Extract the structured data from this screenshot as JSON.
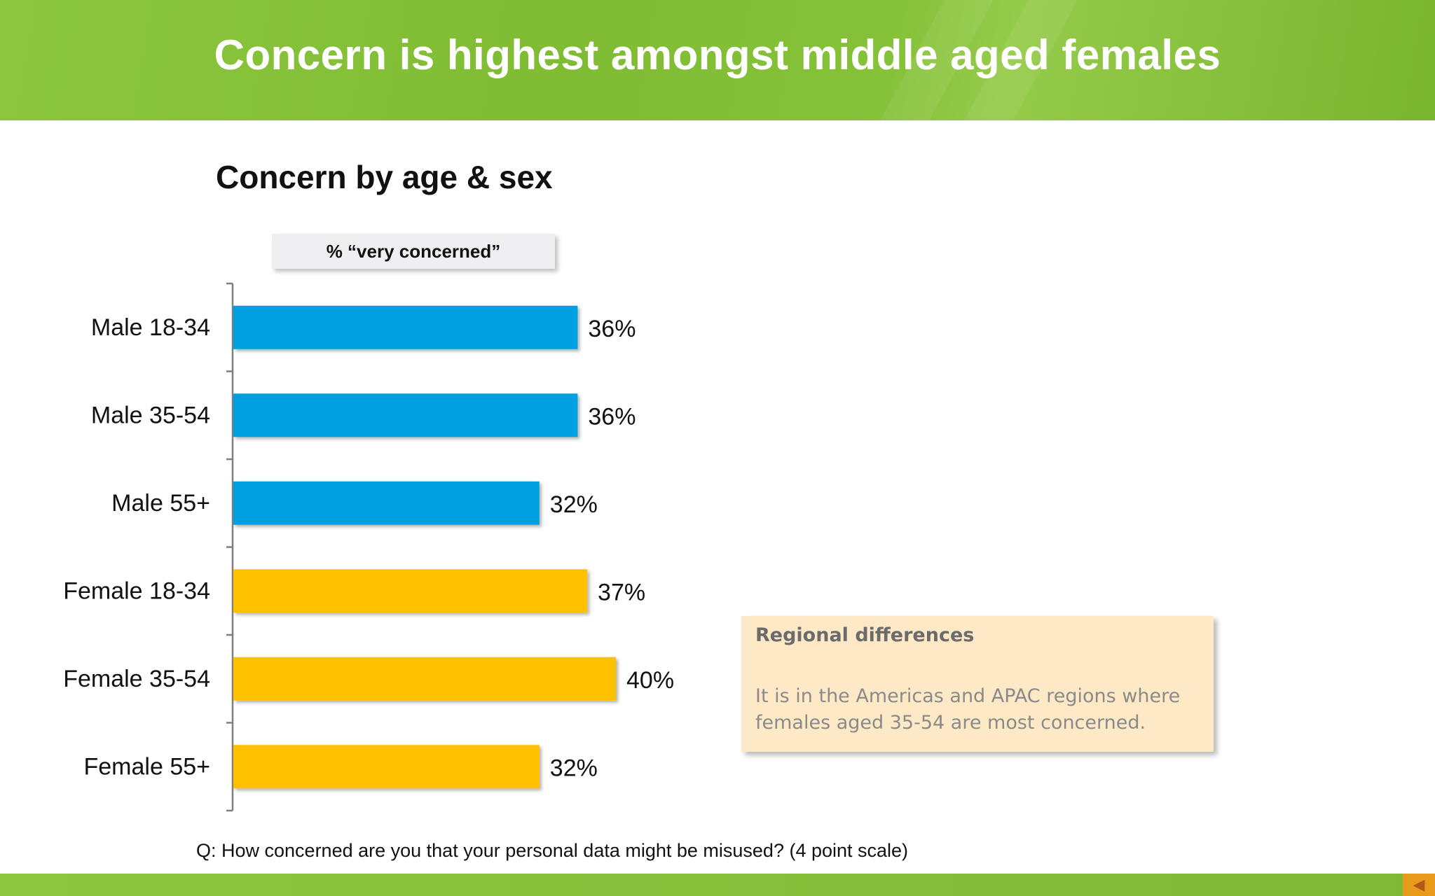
{
  "slide": {
    "title": "Concern is highest amongst middle aged females",
    "question": "Q:  How concerned are you that your personal data might be misused? (4 point scale)"
  },
  "chart_data": {
    "type": "bar",
    "orientation": "horizontal",
    "title": "Concern by age & sex",
    "legend_label": "% “very concerned”",
    "categories": [
      "Male 18-34",
      "Male 35-54",
      "Male 55+",
      "Female 18-34",
      "Female 35-54",
      "Female 55+"
    ],
    "values": [
      36,
      36,
      32,
      37,
      40,
      32
    ],
    "value_labels": [
      "36%",
      "36%",
      "32%",
      "37%",
      "40%",
      "32%"
    ],
    "bar_colors": [
      "#00a0e0",
      "#00a0e0",
      "#00a0e0",
      "#ffc000",
      "#ffc000",
      "#ffc000"
    ],
    "grid": false,
    "xaxis_visible": false
  },
  "callout": {
    "title": "Regional differences",
    "body": "It is in the Americas and APAC regions where females aged 35-54 are most concerned."
  },
  "colors": {
    "header_green": "#7fbc33",
    "male_bar": "#00a0e0",
    "female_bar": "#ffc000",
    "callout_bg": "#fde9c5",
    "nav_orange": "#e89a1a"
  },
  "nav": {
    "back_icon": "triangle-left-icon"
  }
}
